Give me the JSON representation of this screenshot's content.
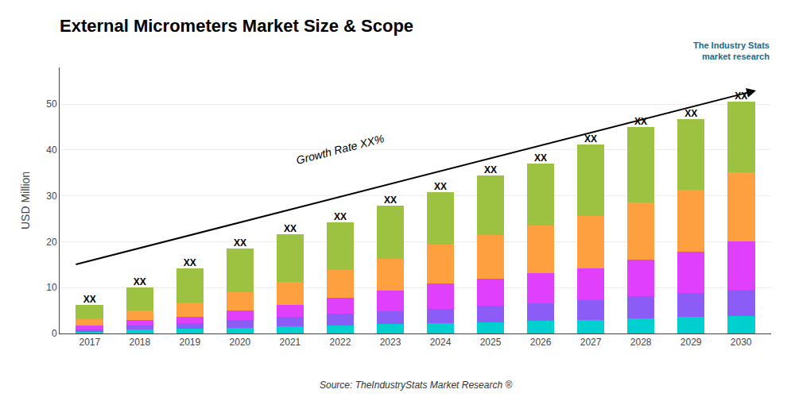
{
  "chart_data": {
    "type": "bar",
    "title": "External Micrometers Market Size & Scope",
    "ylabel": "USD Million",
    "source": "Source: TheIndustryStats Market Research ®",
    "watermark": "The Industry Stats\nmarket research",
    "categories": [
      "2017",
      "2018",
      "2019",
      "2020",
      "2021",
      "2022",
      "2023",
      "2024",
      "2025",
      "2026",
      "2027",
      "2028",
      "2029",
      "2030"
    ],
    "stacked": true,
    "series": [
      {
        "color": "#00CFCF",
        "values": [
          0.4,
          0.8,
          1.0,
          1.2,
          1.5,
          1.8,
          2.0,
          2.2,
          2.5,
          2.8,
          3.0,
          3.3,
          3.6,
          3.8
        ]
      },
      {
        "color": "#8B5CF6",
        "values": [
          0.5,
          1.0,
          1.2,
          1.8,
          2.2,
          2.5,
          2.8,
          3.2,
          3.5,
          3.8,
          4.2,
          4.8,
          5.2,
          5.8
        ]
      },
      {
        "color": "#E040FB",
        "values": [
          0.8,
          1.2,
          1.5,
          2.0,
          2.5,
          3.5,
          4.5,
          5.5,
          6.0,
          6.5,
          7.0,
          8.0,
          9.0,
          10.5
        ]
      },
      {
        "color": "#FFA040",
        "values": [
          1.5,
          2.0,
          3.0,
          4.0,
          5.0,
          6.0,
          7.0,
          8.5,
          9.5,
          10.5,
          11.5,
          12.5,
          13.5,
          15.0
        ]
      },
      {
        "color": "#9DC140",
        "values": [
          3.0,
          5.0,
          7.5,
          9.5,
          10.5,
          10.5,
          11.5,
          11.5,
          13.0,
          13.5,
          15.5,
          16.5,
          15.5,
          15.5
        ]
      }
    ],
    "bar_label": "XX",
    "totals": [
      6.2,
      10.0,
      14.2,
      18.5,
      21.7,
      24.3,
      27.8,
      30.9,
      34.5,
      37.1,
      41.2,
      45.1,
      46.8,
      50.6
    ],
    "arrow": {
      "start": [
        2017,
        15
      ],
      "end": [
        2030,
        53
      ],
      "label": "Growth Rate XX%"
    },
    "ylim": [
      0,
      58
    ],
    "yticks": [
      0,
      10,
      20,
      30,
      40,
      50
    ],
    "grid": true
  }
}
